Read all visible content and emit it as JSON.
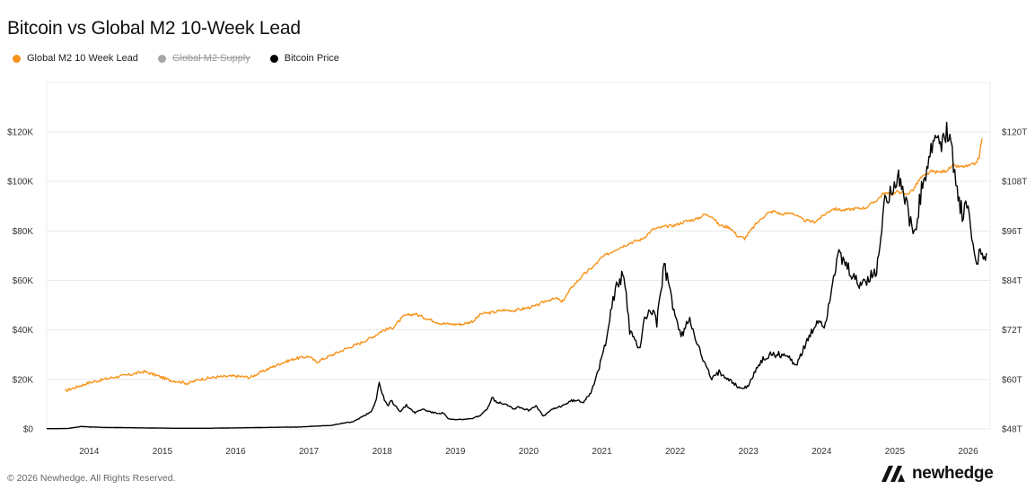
{
  "title": "Bitcoin vs Global M2 10-Week Lead",
  "legend": [
    {
      "label": "Global M2 10 Week Lead",
      "color": "#f7931a",
      "enabled": true
    },
    {
      "label": "Global M2 Supply",
      "color": "#a6a6a6",
      "enabled": false
    },
    {
      "label": "Bitcoin Price",
      "color": "#000000",
      "enabled": true
    }
  ],
  "footer": "© 2026 Newhedge. All Rights Reserved.",
  "brand": "newhedge",
  "chart_data": {
    "type": "line",
    "grid": "horizontal",
    "x_range": [
      2013.42,
      2026.3
    ],
    "x_ticks": [
      "2014",
      "2015",
      "2016",
      "2017",
      "2018",
      "2019",
      "2020",
      "2021",
      "2022",
      "2023",
      "2024",
      "2025",
      "2026"
    ],
    "left_axis": {
      "ticks": [
        "$0",
        "$20K",
        "$40K",
        "$60K",
        "$80K",
        "$100K",
        "$120K"
      ],
      "range": [
        0,
        120000
      ]
    },
    "right_axis": {
      "ticks": [
        "$48T",
        "$60T",
        "$72T",
        "$84T",
        "$96T",
        "$108T",
        "$120T"
      ],
      "range": [
        48,
        120
      ]
    },
    "series": [
      {
        "name": "Global M2 10 Week Lead",
        "axis": "right",
        "color": "#f7931a",
        "points": [
          [
            2013.67,
            57.2
          ],
          [
            2013.8,
            58.0
          ],
          [
            2014.0,
            59.2
          ],
          [
            2014.3,
            60.4
          ],
          [
            2014.6,
            61.3
          ],
          [
            2014.75,
            61.9
          ],
          [
            2014.9,
            61.1
          ],
          [
            2015.1,
            59.8
          ],
          [
            2015.25,
            59.4
          ],
          [
            2015.35,
            59.0
          ],
          [
            2015.5,
            60.0
          ],
          [
            2015.75,
            60.6
          ],
          [
            2016.0,
            60.8
          ],
          [
            2016.2,
            60.5
          ],
          [
            2016.4,
            62.2
          ],
          [
            2016.6,
            63.8
          ],
          [
            2016.8,
            65.0
          ],
          [
            2017.0,
            65.6
          ],
          [
            2017.1,
            64.2
          ],
          [
            2017.3,
            65.8
          ],
          [
            2017.5,
            67.4
          ],
          [
            2017.7,
            68.8
          ],
          [
            2017.9,
            70.6
          ],
          [
            2018.0,
            71.8
          ],
          [
            2018.15,
            72.6
          ],
          [
            2018.3,
            75.4
          ],
          [
            2018.45,
            75.9
          ],
          [
            2018.6,
            74.8
          ],
          [
            2018.8,
            73.6
          ],
          [
            2018.95,
            73.4
          ],
          [
            2019.1,
            73.4
          ],
          [
            2019.25,
            74.2
          ],
          [
            2019.35,
            75.9
          ],
          [
            2019.5,
            76.2
          ],
          [
            2019.65,
            76.8
          ],
          [
            2019.8,
            76.7
          ],
          [
            2019.95,
            77.2
          ],
          [
            2020.1,
            77.8
          ],
          [
            2020.25,
            79.2
          ],
          [
            2020.4,
            79.6
          ],
          [
            2020.45,
            78.6
          ],
          [
            2020.6,
            82.6
          ],
          [
            2020.75,
            85.4
          ],
          [
            2020.9,
            87.6
          ],
          [
            2021.0,
            89.6
          ],
          [
            2021.2,
            91.6
          ],
          [
            2021.4,
            93.2
          ],
          [
            2021.55,
            94.0
          ],
          [
            2021.7,
            96.4
          ],
          [
            2021.85,
            97.0
          ],
          [
            2022.0,
            97.4
          ],
          [
            2022.15,
            98.4
          ],
          [
            2022.3,
            98.9
          ],
          [
            2022.4,
            100.0
          ],
          [
            2022.5,
            99.6
          ],
          [
            2022.6,
            97.4
          ],
          [
            2022.75,
            96.8
          ],
          [
            2022.85,
            94.8
          ],
          [
            2022.95,
            94.2
          ],
          [
            2023.1,
            97.6
          ],
          [
            2023.25,
            100.2
          ],
          [
            2023.35,
            100.8
          ],
          [
            2023.45,
            100.0
          ],
          [
            2023.6,
            100.4
          ],
          [
            2023.75,
            98.6
          ],
          [
            2023.9,
            98.2
          ],
          [
            2024.0,
            99.4
          ],
          [
            2024.15,
            101.4
          ],
          [
            2024.3,
            101.0
          ],
          [
            2024.45,
            101.4
          ],
          [
            2024.6,
            101.6
          ],
          [
            2024.75,
            103.4
          ],
          [
            2024.85,
            105.2
          ],
          [
            2024.95,
            104.8
          ],
          [
            2025.05,
            105.6
          ],
          [
            2025.15,
            104.8
          ],
          [
            2025.25,
            106.0
          ],
          [
            2025.35,
            108.8
          ],
          [
            2025.5,
            110.4
          ],
          [
            2025.6,
            110.2
          ],
          [
            2025.7,
            110.6
          ],
          [
            2025.8,
            111.8
          ],
          [
            2025.9,
            111.5
          ],
          [
            2026.0,
            111.7
          ],
          [
            2026.1,
            112.3
          ],
          [
            2026.15,
            113.8
          ],
          [
            2026.19,
            118.4
          ]
        ]
      },
      {
        "name": "Bitcoin Price",
        "axis": "left",
        "color": "#000000",
        "points": [
          [
            2013.42,
            100
          ],
          [
            2013.7,
            140
          ],
          [
            2013.9,
            1000
          ],
          [
            2014.0,
            800
          ],
          [
            2014.2,
            600
          ],
          [
            2014.5,
            500
          ],
          [
            2014.9,
            350
          ],
          [
            2015.2,
            250
          ],
          [
            2015.6,
            250
          ],
          [
            2016.0,
            420
          ],
          [
            2016.5,
            620
          ],
          [
            2016.9,
            800
          ],
          [
            2017.0,
            1000
          ],
          [
            2017.3,
            1400
          ],
          [
            2017.5,
            2500
          ],
          [
            2017.6,
            2800
          ],
          [
            2017.7,
            4500
          ],
          [
            2017.85,
            7000
          ],
          [
            2017.92,
            12000
          ],
          [
            2017.96,
            19000
          ],
          [
            2018.0,
            14000
          ],
          [
            2018.08,
            9000
          ],
          [
            2018.12,
            11500
          ],
          [
            2018.25,
            7000
          ],
          [
            2018.33,
            9500
          ],
          [
            2018.45,
            6500
          ],
          [
            2018.55,
            8000
          ],
          [
            2018.7,
            6500
          ],
          [
            2018.85,
            6300
          ],
          [
            2018.9,
            4000
          ],
          [
            2019.0,
            3700
          ],
          [
            2019.2,
            4000
          ],
          [
            2019.35,
            5500
          ],
          [
            2019.45,
            9000
          ],
          [
            2019.5,
            13000
          ],
          [
            2019.55,
            11000
          ],
          [
            2019.7,
            10000
          ],
          [
            2019.8,
            8000
          ],
          [
            2019.85,
            9000
          ],
          [
            2020.0,
            7500
          ],
          [
            2020.1,
            9500
          ],
          [
            2020.2,
            5000
          ],
          [
            2020.3,
            7500
          ],
          [
            2020.45,
            9300
          ],
          [
            2020.6,
            11500
          ],
          [
            2020.75,
            11000
          ],
          [
            2020.85,
            15000
          ],
          [
            2020.95,
            23000
          ],
          [
            2021.05,
            35000
          ],
          [
            2021.12,
            48000
          ],
          [
            2021.2,
            57000
          ],
          [
            2021.3,
            63000
          ],
          [
            2021.38,
            40000
          ],
          [
            2021.45,
            35000
          ],
          [
            2021.52,
            33000
          ],
          [
            2021.58,
            45000
          ],
          [
            2021.7,
            48000
          ],
          [
            2021.75,
            43000
          ],
          [
            2021.85,
            66000
          ],
          [
            2021.92,
            57000
          ],
          [
            2022.0,
            46000
          ],
          [
            2022.08,
            37000
          ],
          [
            2022.2,
            45000
          ],
          [
            2022.35,
            30000
          ],
          [
            2022.5,
            20000
          ],
          [
            2022.6,
            23000
          ],
          [
            2022.75,
            20000
          ],
          [
            2022.87,
            16500
          ],
          [
            2023.0,
            17000
          ],
          [
            2023.08,
            23000
          ],
          [
            2023.2,
            28000
          ],
          [
            2023.3,
            30000
          ],
          [
            2023.5,
            30000
          ],
          [
            2023.65,
            26000
          ],
          [
            2023.8,
            35000
          ],
          [
            2023.95,
            44000
          ],
          [
            2024.05,
            42000
          ],
          [
            2024.15,
            60000
          ],
          [
            2024.22,
            70000
          ],
          [
            2024.35,
            65000
          ],
          [
            2024.5,
            58000
          ],
          [
            2024.6,
            60000
          ],
          [
            2024.75,
            63000
          ],
          [
            2024.85,
            90000
          ],
          [
            2024.95,
            98000
          ],
          [
            2025.05,
            102000
          ],
          [
            2025.12,
            96000
          ],
          [
            2025.2,
            84000
          ],
          [
            2025.28,
            78000
          ],
          [
            2025.35,
            94000
          ],
          [
            2025.45,
            106000
          ],
          [
            2025.55,
            118000
          ],
          [
            2025.65,
            114000
          ],
          [
            2025.75,
            122000
          ],
          [
            2025.8,
            108000
          ],
          [
            2025.85,
            95000
          ],
          [
            2025.92,
            87000
          ],
          [
            2026.0,
            90000
          ],
          [
            2026.05,
            78000
          ],
          [
            2026.1,
            68000
          ],
          [
            2026.15,
            70000
          ],
          [
            2026.25,
            71000
          ]
        ]
      }
    ]
  }
}
